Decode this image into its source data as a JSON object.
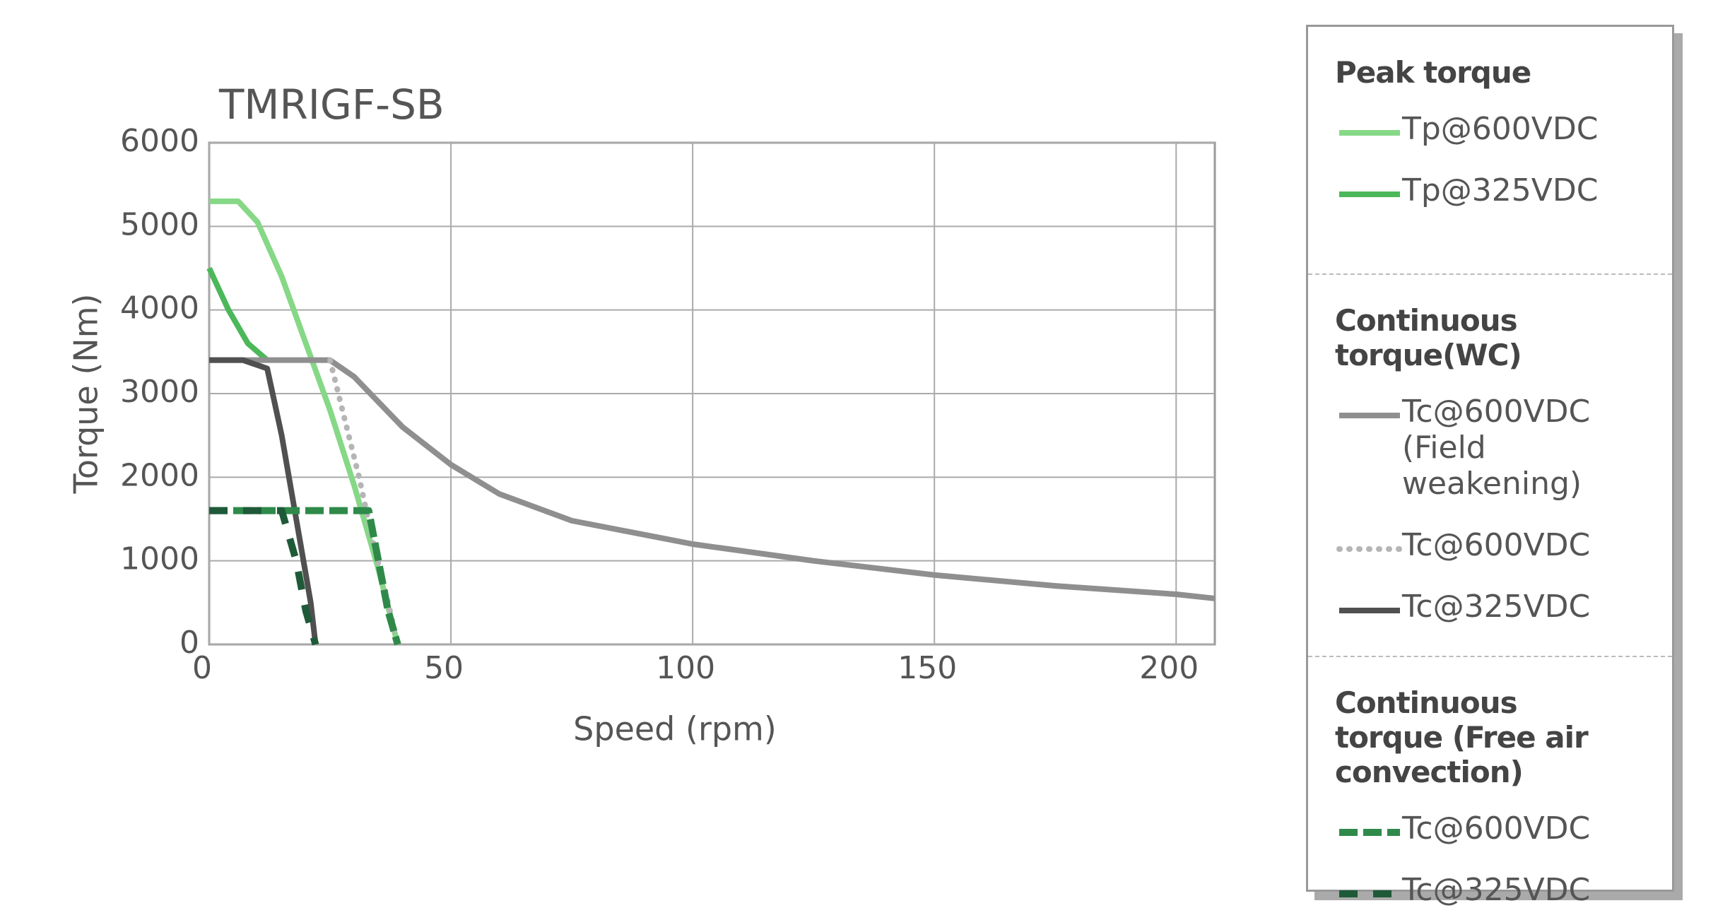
{
  "chart_data": {
    "type": "line",
    "title": "TMRIGF-SB",
    "x_label": "Speed (rpm)",
    "y_label": "Torque (Nm)",
    "xlim": [
      0,
      208
    ],
    "ylim": [
      0,
      6000
    ],
    "xticks": [
      0,
      50,
      100,
      150,
      200
    ],
    "yticks": [
      0,
      1000,
      2000,
      3000,
      4000,
      5000,
      6000
    ],
    "grid": true,
    "legend_groups": [
      {
        "title": "Peak torque"
      },
      {
        "title": "Continuous torque(WC)"
      },
      {
        "title": "Continuous torque (Free air convection)"
      }
    ],
    "series": [
      {
        "name": "Tp@600VDC",
        "color": "#86d886",
        "style": "solid",
        "x": [
          0,
          6,
          10,
          15,
          20,
          25,
          30,
          35,
          39
        ],
        "values": [
          5300,
          5300,
          5050,
          4400,
          3600,
          2800,
          1900,
          900,
          0
        ]
      },
      {
        "name": "Tp@325VDC",
        "color": "#4cb85a",
        "style": "solid",
        "x": [
          0,
          4,
          8,
          12
        ],
        "values": [
          4500,
          4000,
          3600,
          3400
        ]
      },
      {
        "name": "Tc@600VDC (Field weakening)",
        "color": "#8f8f8f",
        "style": "solid",
        "x": [
          0,
          25,
          30,
          40,
          50,
          60,
          75,
          100,
          125,
          150,
          175,
          200,
          208
        ],
        "values": [
          3400,
          3400,
          3200,
          2600,
          2150,
          1800,
          1480,
          1200,
          1000,
          830,
          700,
          600,
          550
        ]
      },
      {
        "name": "Tc@600VDC",
        "color": "#b5b5b5",
        "style": "dotted",
        "x": [
          25,
          28,
          31,
          34,
          37,
          39
        ],
        "values": [
          3400,
          2700,
          2000,
          1200,
          500,
          0
        ]
      },
      {
        "name": "Tc@325VDC",
        "color": "#505050",
        "style": "solid",
        "x": [
          0,
          7,
          12,
          15,
          18,
          21,
          22
        ],
        "values": [
          3400,
          3400,
          3300,
          2500,
          1500,
          500,
          0
        ]
      },
      {
        "name": "Tc@600VDC",
        "color": "#2f8a4a",
        "style": "dashed",
        "x": [
          0,
          33,
          35,
          37,
          39
        ],
        "values": [
          1600,
          1600,
          1000,
          400,
          0
        ]
      },
      {
        "name": "Tc@325VDC",
        "color": "#1f5a38",
        "style": "dashed-wide",
        "x": [
          0,
          15,
          18,
          20,
          22
        ],
        "values": [
          1600,
          1600,
          1000,
          400,
          0
        ]
      }
    ]
  }
}
